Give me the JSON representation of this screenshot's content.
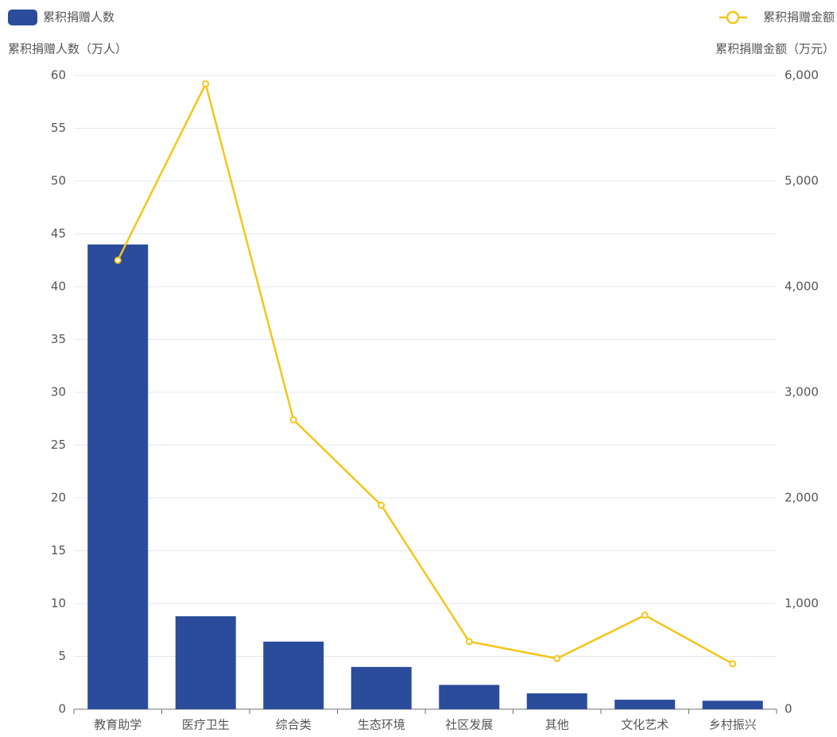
{
  "chart_data": {
    "type": "bar_line",
    "categories": [
      "教育助学",
      "医疗卫生",
      "综合类",
      "生态环境",
      "社区发展",
      "其他",
      "文化艺术",
      "乡村振兴"
    ],
    "series": [
      {
        "name": "累积捐赠人数",
        "type": "bar",
        "color": "#2b4c9b",
        "values": [
          44,
          8.8,
          6.4,
          4.0,
          2.3,
          1.5,
          0.9,
          0.8
        ]
      },
      {
        "name": "累积捐赠金额",
        "type": "line",
        "axis": "y2",
        "color": "#f5c518",
        "values": [
          4250,
          5920,
          2740,
          1930,
          640,
          480,
          890,
          430
        ]
      }
    ],
    "ylabel": "累积捐赠人数（万人）",
    "y2label": "累积捐赠金额（万元）",
    "ylim": [
      0,
      60
    ],
    "yticks": [
      0,
      5,
      10,
      15,
      20,
      25,
      30,
      35,
      40,
      45,
      50,
      55,
      60
    ],
    "y2lim": [
      0,
      6000
    ],
    "y2ticks": [
      0,
      {
        "value": 1000,
        "label": "1,000"
      },
      {
        "value": 2000,
        "label": "2,000"
      },
      {
        "value": 3000,
        "label": "3,000"
      },
      {
        "value": 4000,
        "label": "4,000"
      },
      {
        "value": 5000,
        "label": "5,000"
      },
      {
        "value": 6000,
        "label": "6,000"
      }
    ],
    "grid": true,
    "legend": "top"
  }
}
